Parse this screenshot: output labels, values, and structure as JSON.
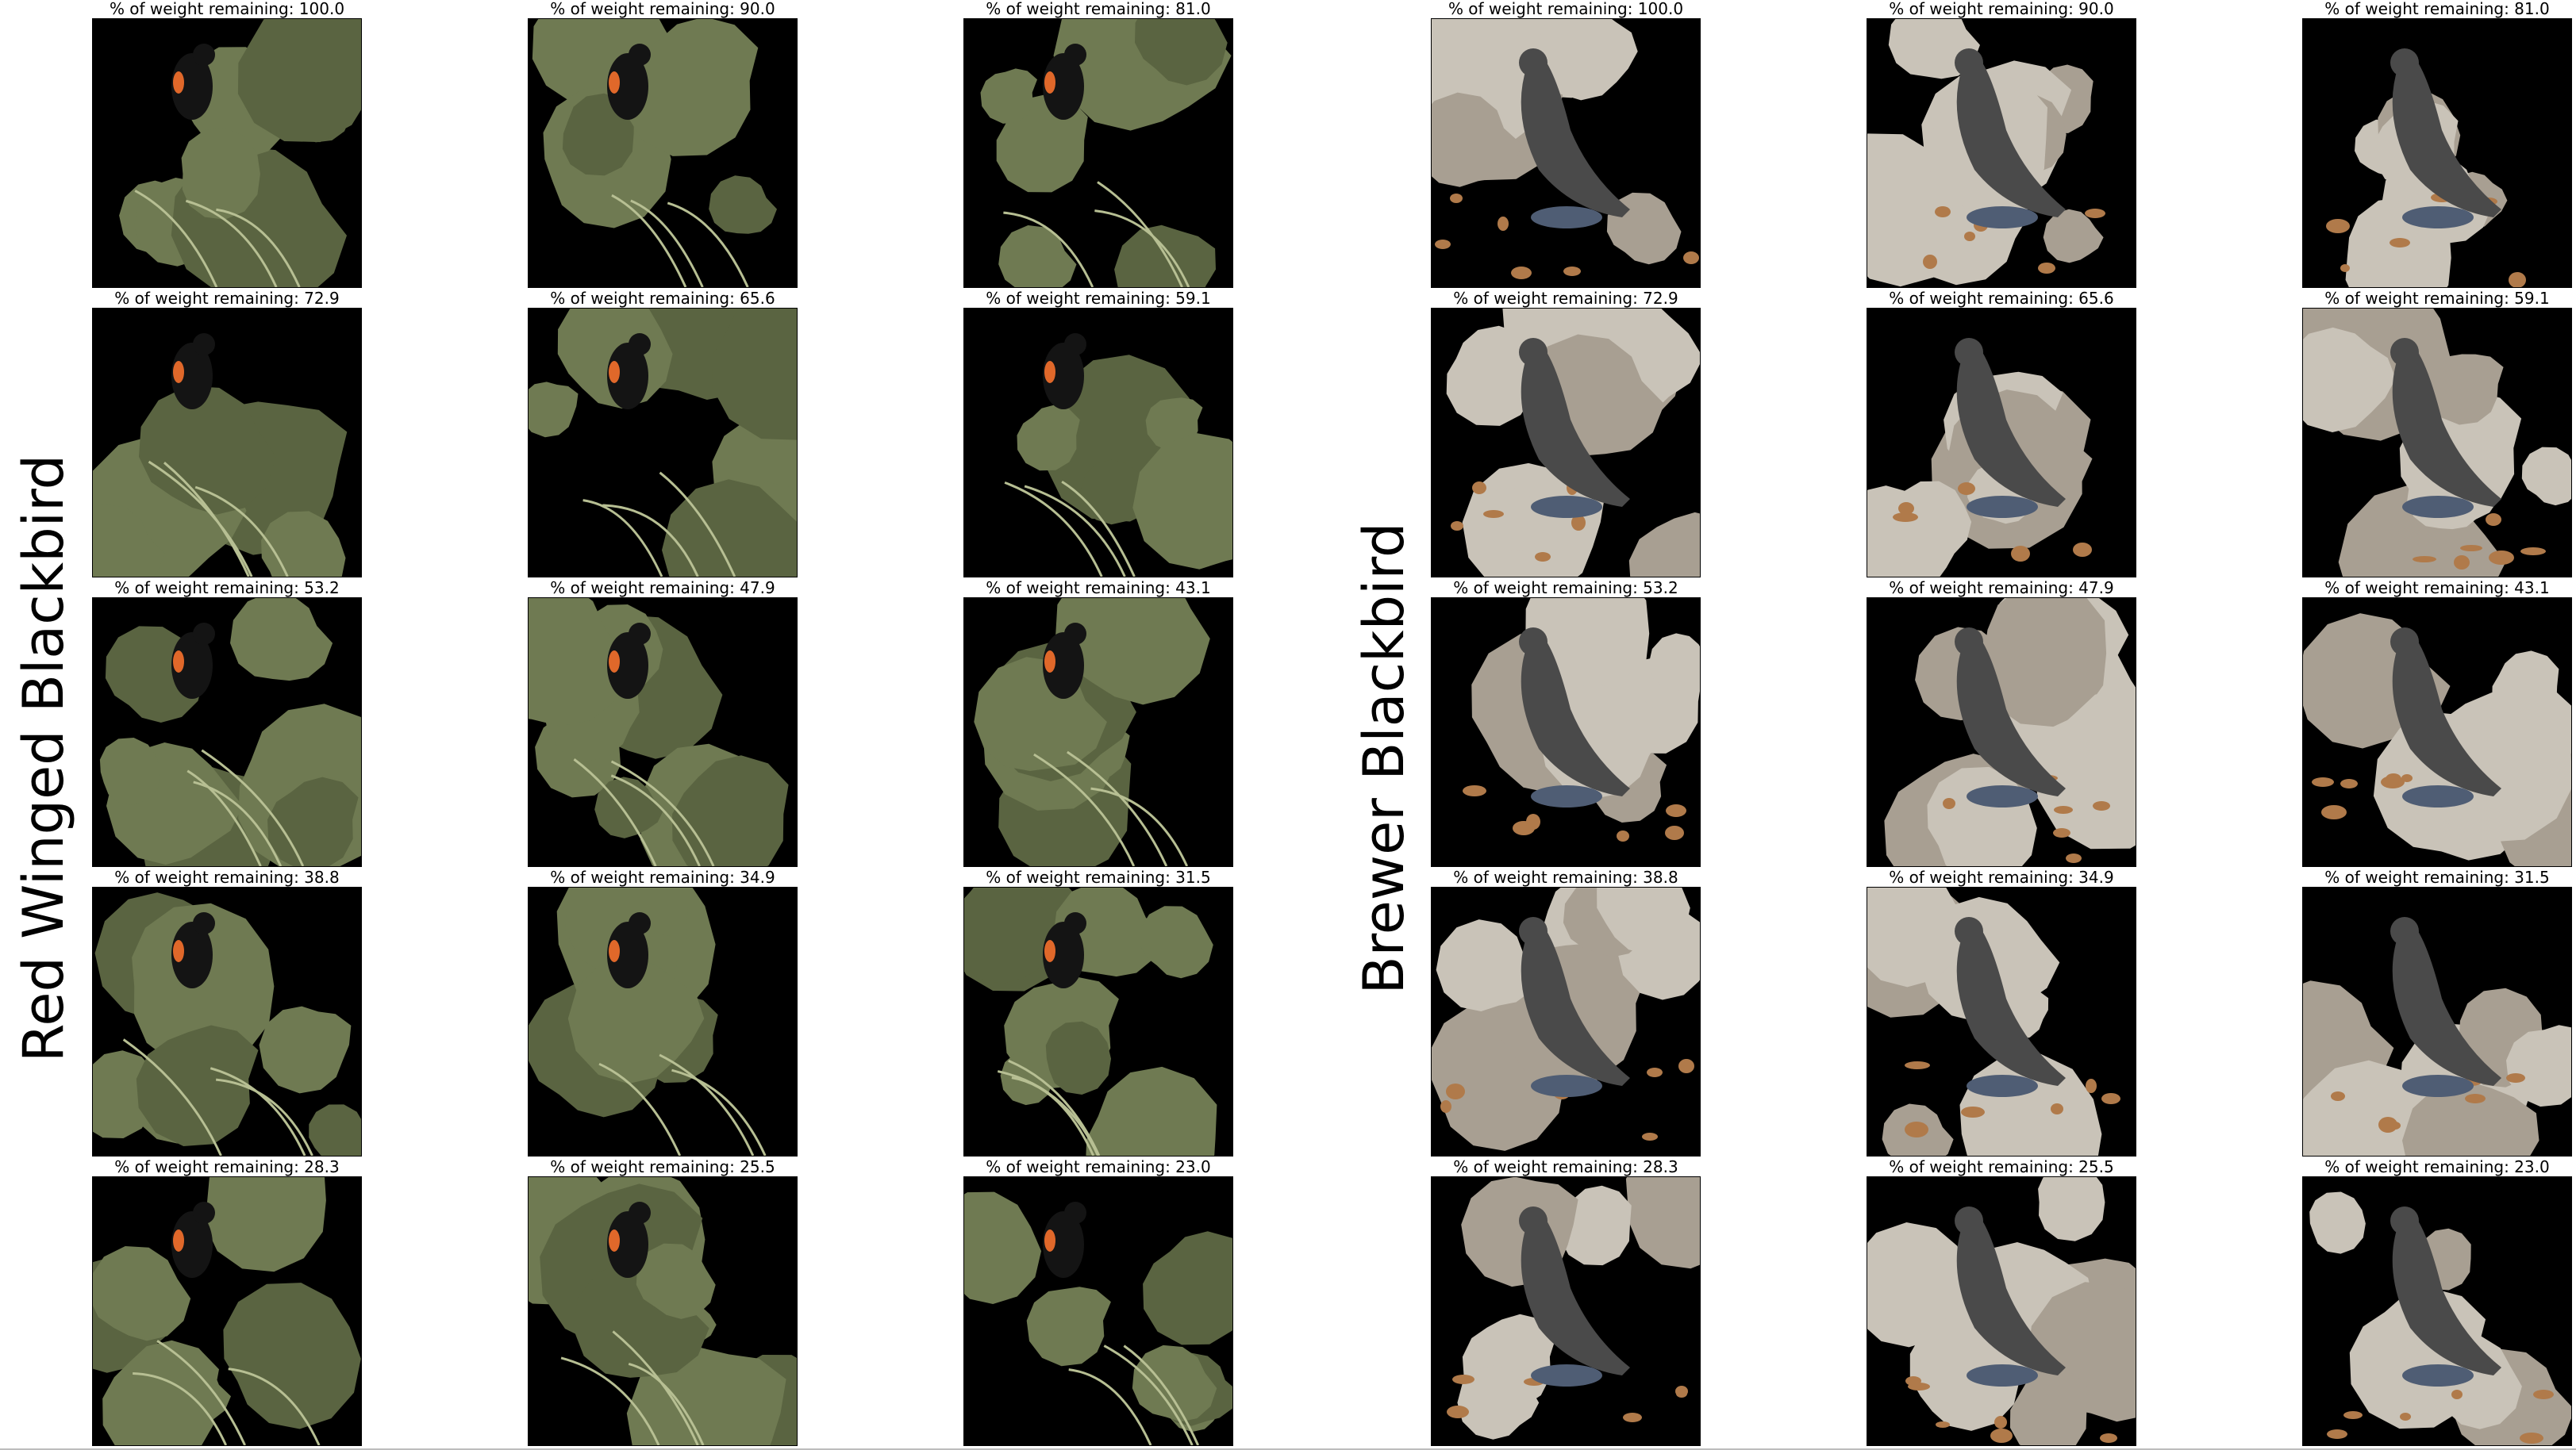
{
  "figure": {
    "panels": [
      {
        "label": "Red Winged Blackbird",
        "image_kind": "red-winged-blackbird-masked-image",
        "colors": {
          "background": "#6f7a52",
          "background_dark": "#5a6441",
          "leaf": "#b7bf93",
          "bird": "#141414",
          "shoulder_patch": "#e0682a"
        },
        "cells": [
          {
            "title": "% of weight remaining: 100.0"
          },
          {
            "title": "% of weight remaining: 90.0"
          },
          {
            "title": "% of weight remaining: 81.0"
          },
          {
            "title": "% of weight remaining: 72.9"
          },
          {
            "title": "% of weight remaining: 65.6"
          },
          {
            "title": "% of weight remaining: 59.1"
          },
          {
            "title": "% of weight remaining: 53.2"
          },
          {
            "title": "% of weight remaining: 47.9"
          },
          {
            "title": "% of weight remaining: 43.1"
          },
          {
            "title": "% of weight remaining: 38.8"
          },
          {
            "title": "% of weight remaining: 34.9"
          },
          {
            "title": "% of weight remaining: 31.5"
          },
          {
            "title": "% of weight remaining: 28.3"
          },
          {
            "title": "% of weight remaining: 25.5"
          },
          {
            "title": "% of weight remaining: 23.0"
          }
        ]
      },
      {
        "label": "Brewer Blackbird",
        "image_kind": "brewer-blackbird-masked-image",
        "colors": {
          "background": "#c9c3b8",
          "background_dark": "#a89f92",
          "pebbles": "#b07a4a",
          "bird": "#4a4a4a",
          "shadow": "#4f5d74"
        },
        "cells": [
          {
            "title": "% of weight remaining: 100.0"
          },
          {
            "title": "% of weight remaining: 90.0"
          },
          {
            "title": "% of weight remaining: 81.0"
          },
          {
            "title": "% of weight remaining: 72.9"
          },
          {
            "title": "% of weight remaining: 65.6"
          },
          {
            "title": "% of weight remaining: 59.1"
          },
          {
            "title": "% of weight remaining: 53.2"
          },
          {
            "title": "% of weight remaining: 47.9"
          },
          {
            "title": "% of weight remaining: 43.1"
          },
          {
            "title": "% of weight remaining: 38.8"
          },
          {
            "title": "% of weight remaining: 34.9"
          },
          {
            "title": "% of weight remaining: 31.5"
          },
          {
            "title": "% of weight remaining: 28.3"
          },
          {
            "title": "% of weight remaining: 25.5"
          },
          {
            "title": "% of weight remaining: 23.0"
          }
        ]
      }
    ]
  }
}
